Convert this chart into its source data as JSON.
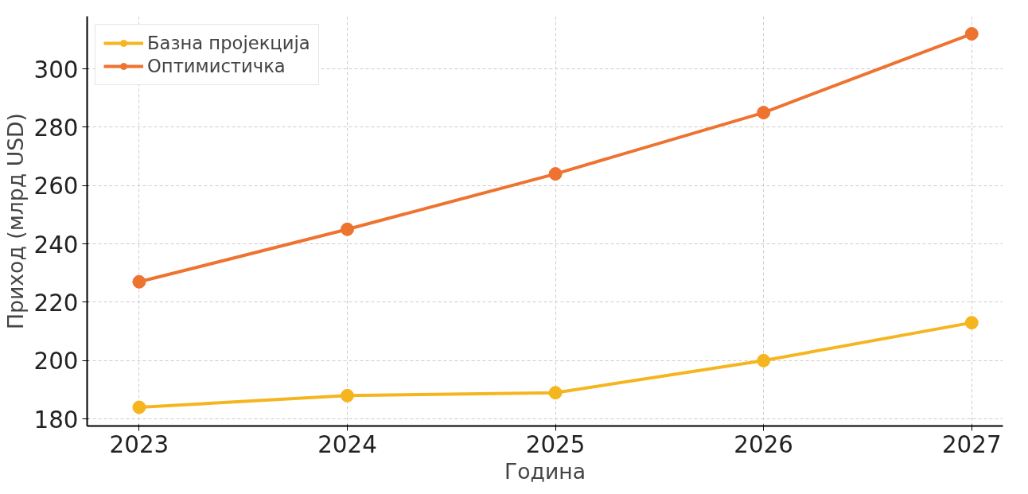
{
  "chart_data": {
    "type": "line",
    "xlabel": "Година",
    "ylabel": "Приход (млрд USD)",
    "x": [
      2023,
      2024,
      2025,
      2026,
      2027
    ],
    "series": [
      {
        "name": "Базна пројекција",
        "color": "#f5b51e",
        "values": [
          184,
          188,
          189,
          200,
          213
        ]
      },
      {
        "name": "Оптимистичка",
        "color": "#ee7330",
        "values": [
          227,
          245,
          264,
          285,
          312
        ]
      }
    ],
    "xlim": [
      2022.75,
      2027.15
    ],
    "xticks": [
      2023,
      2024,
      2025,
      2026,
      2027
    ],
    "ylim": [
      177.6,
      318
    ],
    "yticks": [
      180,
      200,
      220,
      240,
      260,
      280,
      300
    ],
    "grid": true,
    "legend": "top left",
    "marker": "circle",
    "line_style": "solid"
  }
}
